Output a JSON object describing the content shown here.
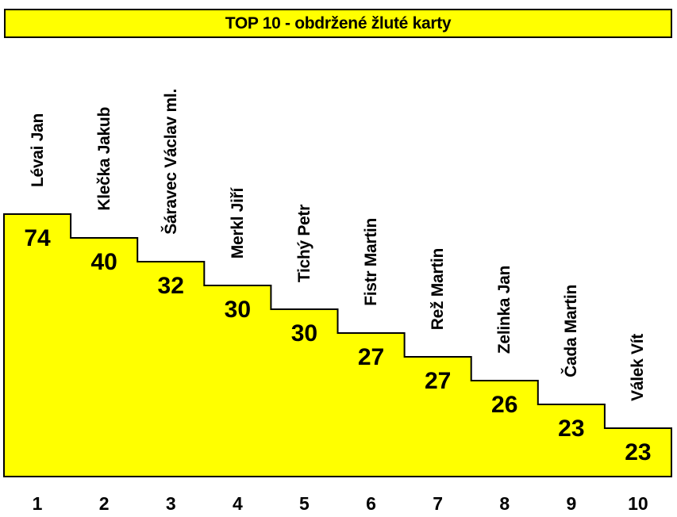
{
  "title": "TOP 10 - obdržené žluté karty",
  "colors": {
    "bar_fill": "#FFFF00",
    "outline": "#000000",
    "background": "#FFFFFF",
    "text": "#000000",
    "title_background": "#FFFF00"
  },
  "chart_data": {
    "type": "bar",
    "variant": "descending-staircase",
    "title": "TOP 10 - obdržené žluté karty",
    "xlabel": "",
    "ylabel": "",
    "grid": false,
    "legend_position": "none",
    "categories": [
      "1",
      "2",
      "3",
      "4",
      "5",
      "6",
      "7",
      "8",
      "9",
      "10"
    ],
    "series": [
      {
        "name": "obdržené žluté karty",
        "values": [
          74,
          40,
          32,
          30,
          30,
          27,
          27,
          26,
          23,
          23
        ]
      }
    ],
    "players": [
      {
        "rank": "1",
        "name": "Lévai Jan",
        "value": "74"
      },
      {
        "rank": "2",
        "name": "Klečka Jakub",
        "value": "40"
      },
      {
        "rank": "3",
        "name": "Šáravec Václav ml.",
        "value": "32"
      },
      {
        "rank": "4",
        "name": "Merkl Jiří",
        "value": "30"
      },
      {
        "rank": "5",
        "name": "Tichý Petr",
        "value": "30"
      },
      {
        "rank": "6",
        "name": "Fistr Martin",
        "value": "27"
      },
      {
        "rank": "7",
        "name": "Rež Martin",
        "value": "27"
      },
      {
        "rank": "8",
        "name": "Zelinka Jan",
        "value": "26"
      },
      {
        "rank": "9",
        "name": "Čada Martin",
        "value": "23"
      },
      {
        "rank": "10",
        "name": "Válek Vít",
        "value": "23"
      }
    ]
  }
}
